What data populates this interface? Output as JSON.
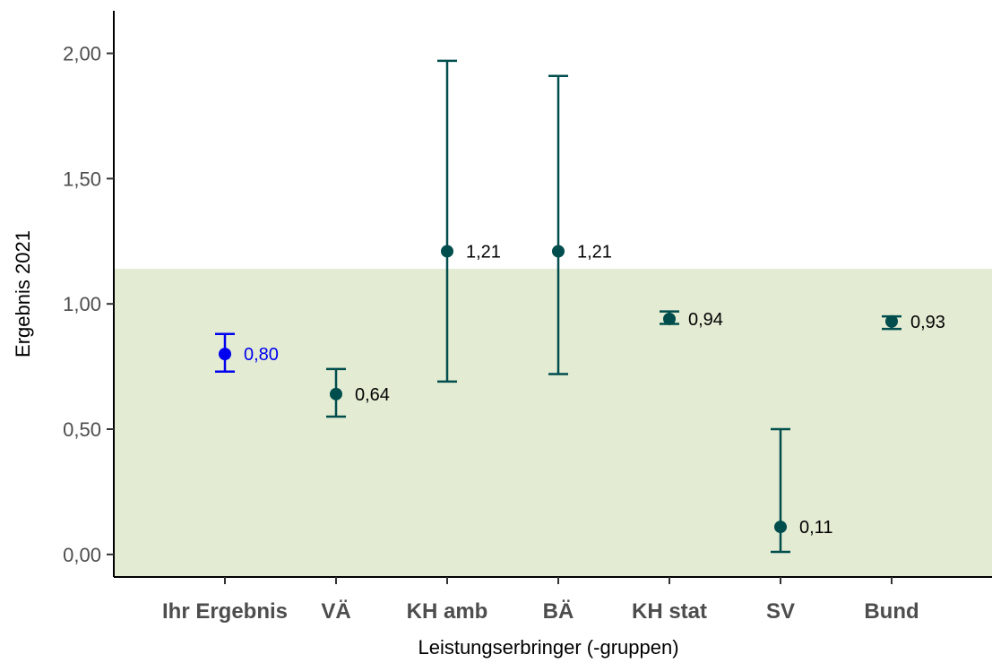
{
  "chart_data": {
    "type": "errorbar",
    "xlabel": "Leistungserbringer (-gruppen)",
    "ylabel": "Ergebnis 2021",
    "ylim": [
      -0.09,
      2.17
    ],
    "yticks": [
      0,
      0.5,
      1,
      1.5,
      2
    ],
    "ytick_labels": [
      "0,00",
      "0,50",
      "1,00",
      "1,50",
      "2,00"
    ],
    "reference_band": {
      "from": -0.09,
      "to": 1.14,
      "color": "#e3ecd3"
    },
    "categories": [
      "Ihr Ergebnis",
      "VÄ",
      "KH amb",
      "BÄ",
      "KH stat",
      "SV",
      "Bund"
    ],
    "points": [
      {
        "category": "Ihr Ergebnis",
        "value": 0.8,
        "low": 0.73,
        "high": 0.88,
        "label": "0,80",
        "color": "#0000ee"
      },
      {
        "category": "VÄ",
        "value": 0.64,
        "low": 0.55,
        "high": 0.74,
        "label": "0,64",
        "color": "#004d4d"
      },
      {
        "category": "KH amb",
        "value": 1.21,
        "low": 0.69,
        "high": 1.97,
        "label": "1,21",
        "color": "#004d4d"
      },
      {
        "category": "BÄ",
        "value": 1.21,
        "low": 0.72,
        "high": 1.91,
        "label": "1,21",
        "color": "#004d4d"
      },
      {
        "category": "KH stat",
        "value": 0.94,
        "low": 0.92,
        "high": 0.97,
        "label": "0,94",
        "color": "#004d4d"
      },
      {
        "category": "SV",
        "value": 0.11,
        "low": 0.01,
        "high": 0.5,
        "label": "0,11",
        "color": "#004d4d"
      },
      {
        "category": "Bund",
        "value": 0.93,
        "low": 0.9,
        "high": 0.95,
        "label": "0,93",
        "color": "#004d4d"
      }
    ],
    "label_colors": {
      "text_default": "#000000",
      "axis": "#000000"
    }
  }
}
